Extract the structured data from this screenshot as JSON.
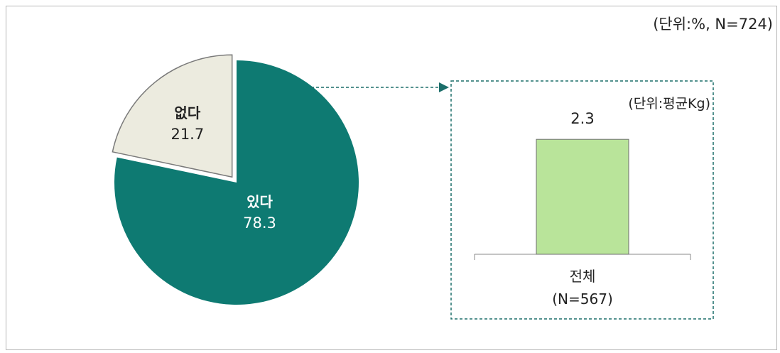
{
  "unit_label": "(단위:%, N=724)",
  "colors": {
    "yes": "#0e7a72",
    "no": "#ecebdf",
    "bar": "#b9e49a",
    "arrow": "#1c6e6a",
    "frame": "#b7b7b7"
  },
  "chart_data": [
    {
      "type": "pie",
      "slices": [
        {
          "label": "있다",
          "value": 78.3,
          "value_text": "78.3",
          "color_key": "yes",
          "exploded": false
        },
        {
          "label": "없다",
          "value": 21.7,
          "value_text": "21.7",
          "color_key": "no",
          "exploded": true
        }
      ]
    },
    {
      "type": "bar",
      "unit_label": "(단위:평균Kg)",
      "categories": [
        "전체"
      ],
      "category_sub": [
        "(N=567)"
      ],
      "values": [
        2.3
      ],
      "value_labels": [
        "2.3"
      ]
    }
  ]
}
